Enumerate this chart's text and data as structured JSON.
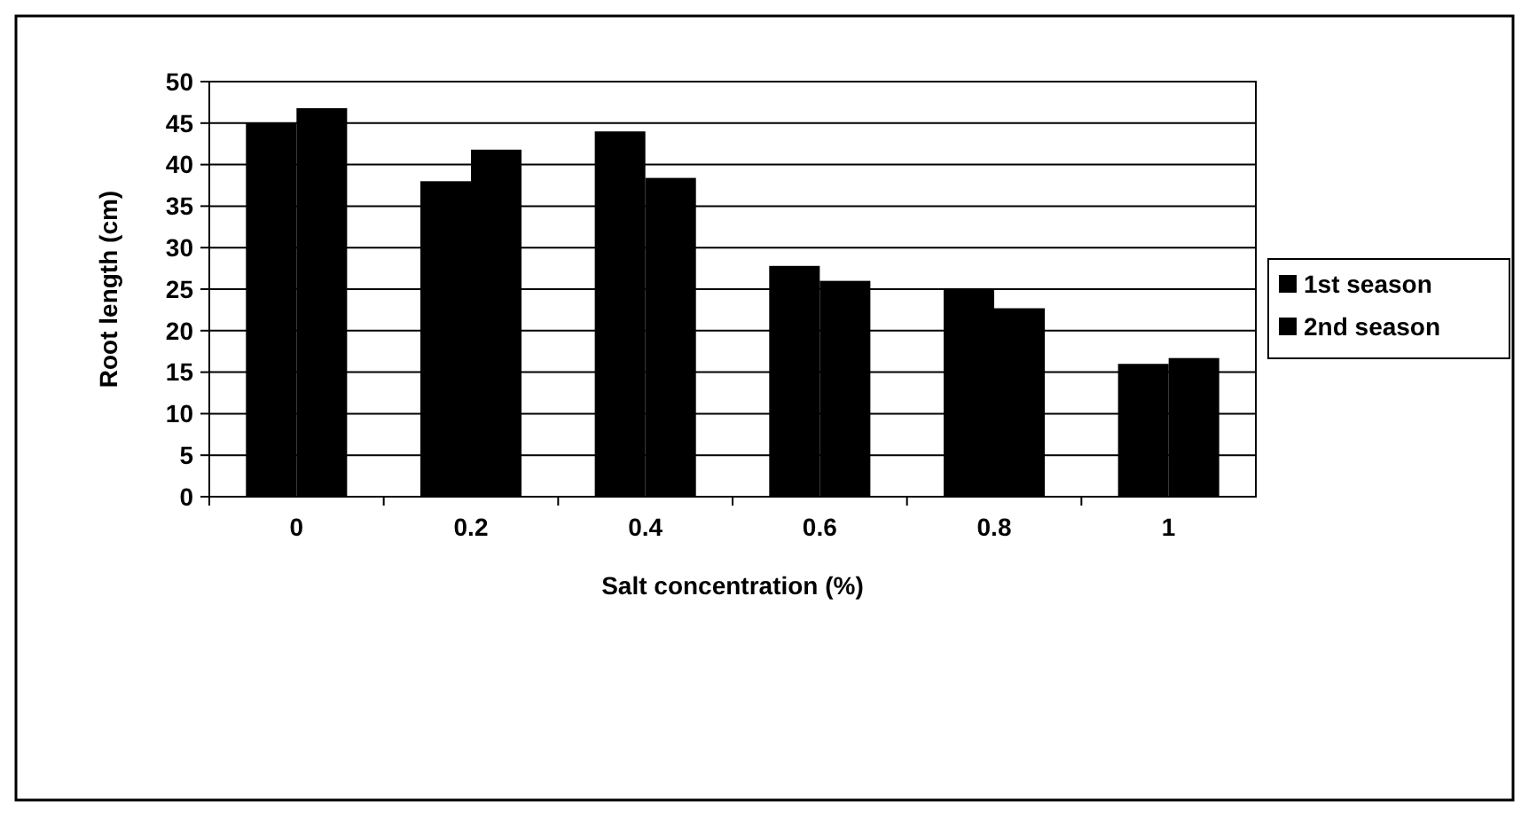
{
  "chart_data": {
    "type": "bar",
    "xlabel": "Salt concentration (%)",
    "ylabel": "Root length (cm)",
    "categories": [
      "0",
      "0.2",
      "0.4",
      "0.6",
      "0.8",
      "1"
    ],
    "series": [
      {
        "name": "1st season",
        "color": "#000000",
        "values": [
          45,
          38,
          44,
          27.8,
          24.9,
          16
        ]
      },
      {
        "name": "2nd season",
        "color": "#000000",
        "values": [
          46.8,
          41.8,
          38.4,
          26,
          22.7,
          16.7
        ]
      }
    ],
    "ylim": [
      0,
      50
    ],
    "yticks": [
      0,
      5,
      10,
      15,
      20,
      25,
      30,
      35,
      40,
      45,
      50
    ],
    "grid": "y",
    "legend": "right"
  }
}
